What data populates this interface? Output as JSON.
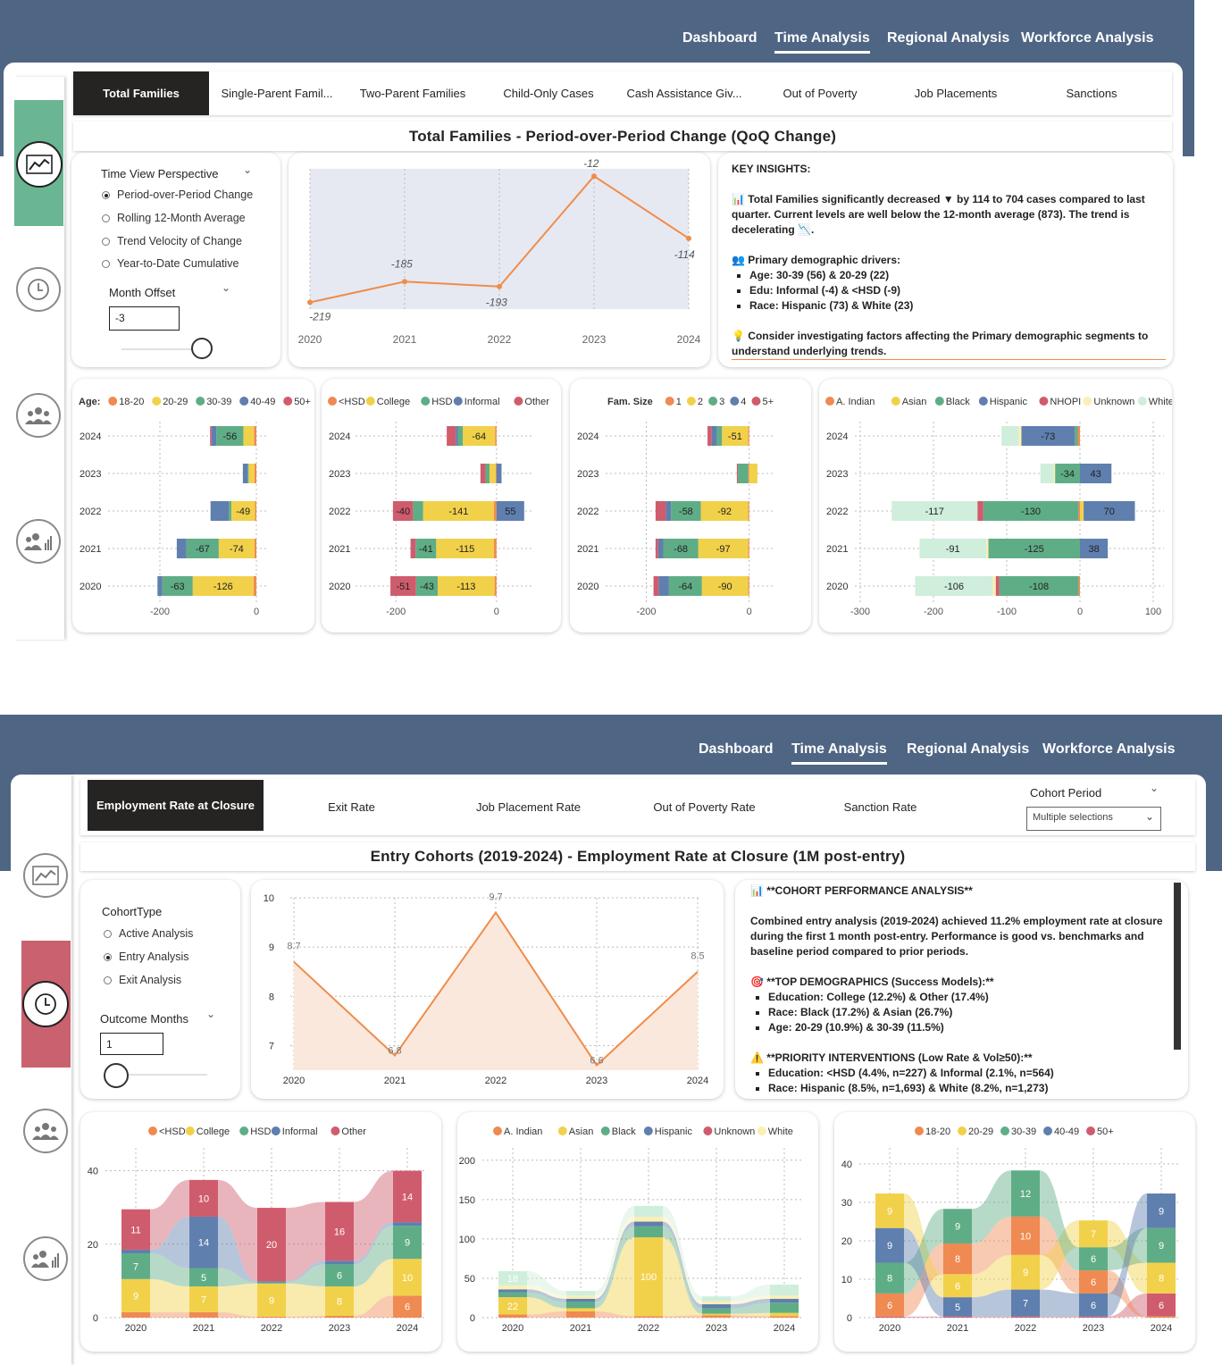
{
  "colors": {
    "nav_band": "#4f6584",
    "accent_orange": "#f08c4b",
    "rail_green": "#6ab592",
    "rail_red": "#c9616f",
    "area_fill_top": "#e6e9f2",
    "area_fill_bottom": "#fbe8dd",
    "tab_active": "#252423"
  },
  "palette": {
    "age": [
      "#ef8a52",
      "#f2d14a",
      "#5fad86",
      "#5f7fae",
      "#cf5c6d"
    ],
    "edu": [
      "#ef8a52",
      "#f2d14a",
      "#5fad86",
      "#5f7fae",
      "#cf5c6d"
    ],
    "race": [
      "#ef8a52",
      "#f2d14a",
      "#5fad86",
      "#5f7fae",
      "#cf5c6d",
      "#fbefb4",
      "#cfeedc"
    ]
  },
  "nav": {
    "items": [
      "Dashboard",
      "Time Analysis",
      "Regional Analysis",
      "Workforce Analysis"
    ],
    "active": "Time Analysis"
  },
  "icons": [
    "trend-line-icon",
    "clock-icon",
    "people-group-icon",
    "people-chart-icon"
  ],
  "panel1": {
    "tabs": [
      "Total Families",
      "Single-Parent Famil...",
      "Two-Parent Families",
      "Child-Only Cases",
      "Cash Assistance Giv...",
      "Out of Poverty",
      "Job Placements",
      "Sanctions"
    ],
    "active_tab": "Total Families",
    "title": "Total Families - Period-over-Period Change (QoQ Change)",
    "perspective": {
      "label": "Time View Perspective",
      "options": [
        "Period-over-Period Change",
        "Rolling 12-Month Average",
        "Trend Velocity of Change",
        "Year-to-Date Cumulative"
      ],
      "selected": 0
    },
    "offset": {
      "label": "Month Offset",
      "value": "-3"
    },
    "insights": {
      "heading": "KEY INSIGHTS:",
      "p1": "📊 Total Families significantly decreased ▼ by 114 to 704 cases compared to last quarter. Current levels are well below the 12-month average (873). The trend is decelerating 📉.",
      "drivers_head": "👥 Primary demographic drivers:",
      "drivers": [
        "Age: 30-39 (56) & 20-29 (22)",
        "Edu: Informal (-4) & <HSD (-9)",
        "Race: Hispanic (73) & White (23)"
      ],
      "tip": "💡 Consider investigating factors affecting the Primary demographic segments to understand underlying trends."
    }
  },
  "chart_data": [
    {
      "id": "qoq-line",
      "type": "area",
      "x": [
        "2020",
        "2021",
        "2022",
        "2023",
        "2024"
      ],
      "values": [
        -219,
        -185,
        -193,
        -12,
        -114
      ],
      "labels": [
        "-219",
        "-185",
        "-193",
        "-12",
        "-114"
      ]
    },
    {
      "id": "age-bars",
      "type": "bar",
      "orientation": "horizontal",
      "stacked": true,
      "legend_title": "Age:",
      "legend": [
        "18-20",
        "20-29",
        "30-39",
        "40-49",
        "50+"
      ],
      "years": [
        "2024",
        "2023",
        "2022",
        "2021",
        "2020"
      ],
      "xticks": [
        "-200",
        "0"
      ],
      "xlim": [
        -200,
        0
      ],
      "series": [
        {
          "name": "18-20",
          "values": [
            -5,
            -4,
            -3,
            -4,
            -6
          ]
        },
        {
          "name": "20-29",
          "values": [
            -22,
            -12,
            -49,
            -74,
            -126
          ]
        },
        {
          "name": "30-39",
          "values": [
            -56,
            -2,
            -5,
            -67,
            -63
          ]
        },
        {
          "name": "40-49",
          "values": [
            -10,
            -10,
            -38,
            -20,
            -10
          ]
        },
        {
          "name": "50+",
          "values": [
            -3,
            0,
            0,
            0,
            0
          ]
        }
      ],
      "labels": {
        "2024": {
          "30-39": "-56"
        },
        "2022": {
          "20-29": "-49"
        },
        "2021": {
          "20-29": "-74",
          "30-39": "-67"
        },
        "2020": {
          "20-29": "-126",
          "30-39": "-63"
        }
      }
    },
    {
      "id": "edu-bars",
      "type": "bar",
      "orientation": "horizontal",
      "stacked": true,
      "legend": [
        "<HSD",
        "College",
        "HSD",
        "Informal",
        "Other"
      ],
      "years": [
        "2024",
        "2023",
        "2022",
        "2021",
        "2020"
      ],
      "xticks": [
        "-200",
        "0"
      ],
      "xlim": [
        -220,
        50
      ],
      "series": [
        {
          "name": "<HSD",
          "values": [
            -3,
            -2,
            -5,
            -5,
            -4
          ]
        },
        {
          "name": "College",
          "values": [
            -64,
            -12,
            -141,
            -115,
            -113
          ]
        },
        {
          "name": "HSD",
          "values": [
            -10,
            -8,
            -20,
            -41,
            -43
          ]
        },
        {
          "name": "Informal",
          "values": [
            -4,
            10,
            55,
            0,
            0
          ]
        },
        {
          "name": "Other",
          "values": [
            -18,
            -10,
            -40,
            -10,
            -51
          ]
        }
      ],
      "labels": {
        "2024": {
          "College": "-64"
        },
        "2022": {
          "Other": "-40",
          "College": "-141",
          "Informal": "55"
        },
        "2021": {
          "HSD": "-41",
          "College": "-115"
        },
        "2020": {
          "Other": "-51",
          "HSD": "-43",
          "College": "-113"
        }
      }
    },
    {
      "id": "famsize-bars",
      "type": "bar",
      "orientation": "horizontal",
      "stacked": true,
      "legend_title": "Fam. Size",
      "legend": [
        "1",
        "2",
        "3",
        "4",
        "5+"
      ],
      "years": [
        "2024",
        "2023",
        "2022",
        "2021",
        "2020"
      ],
      "xticks": [
        "-200",
        "0"
      ],
      "xlim": [
        -220,
        30
      ],
      "series": [
        {
          "name": "1",
          "values": [
            -2,
            -2,
            -2,
            -2,
            -2
          ]
        },
        {
          "name": "2",
          "values": [
            -51,
            16,
            -92,
            -97,
            -90
          ]
        },
        {
          "name": "3",
          "values": [
            -10,
            -20,
            -58,
            -68,
            -64
          ]
        },
        {
          "name": "4",
          "values": [
            -10,
            0,
            -10,
            -10,
            -20
          ]
        },
        {
          "name": "5+",
          "values": [
            -8,
            -2,
            -20,
            -5,
            -10
          ]
        }
      ],
      "labels": {
        "2024": {
          "2": "-51"
        },
        "2022": {
          "3": "-58",
          "2": "-92"
        },
        "2021": {
          "3": "-68",
          "2": "-97"
        },
        "2020": {
          "3": "-64",
          "2": "-90"
        }
      }
    },
    {
      "id": "race-bars",
      "type": "bar",
      "orientation": "horizontal",
      "stacked": true,
      "legend": [
        "A. Indian",
        "Asian",
        "Black",
        "Hispanic",
        "NHOPI",
        "Unknown",
        "White"
      ],
      "years": [
        "2024",
        "2023",
        "2022",
        "2021",
        "2020"
      ],
      "xticks": [
        "-300",
        "-200",
        "-100",
        "0",
        "100"
      ],
      "xlim": [
        -300,
        100
      ],
      "series": [
        {
          "name": "A. Indian",
          "values": [
            -3,
            0,
            -2,
            0,
            -2
          ]
        },
        {
          "name": "Asian",
          "values": [
            0,
            0,
            5,
            0,
            0
          ]
        },
        {
          "name": "Black",
          "values": [
            -4,
            -34,
            -130,
            -125,
            -108
          ]
        },
        {
          "name": "Hispanic",
          "values": [
            -73,
            43,
            70,
            38,
            0
          ]
        },
        {
          "name": "NHOPI",
          "values": [
            0,
            0,
            -8,
            0,
            -5
          ]
        },
        {
          "name": "Unknown",
          "values": [
            -4,
            -2,
            0,
            -3,
            -4
          ]
        },
        {
          "name": "White",
          "values": [
            -23,
            -18,
            -117,
            -91,
            -106
          ]
        }
      ],
      "labels": {
        "2024": {
          "Hispanic": "-73"
        },
        "2023": {
          "Black": "-34",
          "Hispanic": "43"
        },
        "2022": {
          "White": "-117",
          "Black": "-130",
          "Hispanic": "70"
        },
        "2021": {
          "White": "-91",
          "Black": "-125",
          "Hispanic": "38"
        },
        "2020": {
          "White": "-106",
          "Black": "-108"
        }
      }
    },
    {
      "id": "cohort-line",
      "type": "area",
      "x": [
        "2020",
        "2021",
        "2022",
        "2023",
        "2024"
      ],
      "values": [
        8.7,
        6.8,
        9.7,
        6.6,
        8.5
      ],
      "ylim": [
        6.5,
        10
      ],
      "yticks": [
        "10",
        "9",
        "8",
        "7"
      ]
    },
    {
      "id": "edu-ribbon",
      "type": "bar",
      "stacked": true,
      "legend": [
        "<HSD",
        "College",
        "HSD",
        "Informal",
        "Other"
      ],
      "x": [
        "2020",
        "2021",
        "2022",
        "2023",
        "2024"
      ],
      "ylim": [
        0,
        45
      ],
      "yticks": [
        "40",
        "20",
        "0"
      ],
      "series": [
        {
          "name": "<HSD",
          "values": [
            1.5,
            1.5,
            0.3,
            0.5,
            6
          ]
        },
        {
          "name": "College",
          "values": [
            9,
            7,
            9,
            8,
            10
          ]
        },
        {
          "name": "HSD",
          "values": [
            7,
            5,
            0.3,
            6,
            9
          ]
        },
        {
          "name": "Informal",
          "values": [
            1,
            14,
            0.3,
            1,
            1
          ]
        },
        {
          "name": "Other",
          "values": [
            11,
            10,
            20,
            16,
            14
          ]
        }
      ],
      "labels": {
        "<HSD": [
          "",
          "",
          "",
          "",
          "6"
        ],
        "College": [
          "9",
          "7",
          "9",
          "8",
          "10"
        ],
        "HSD": [
          "7",
          "5",
          "",
          "6",
          "9"
        ],
        "Informal": [
          "",
          "14",
          "",
          "",
          ""
        ],
        "Other": [
          "11",
          "10",
          "20",
          "16",
          "14"
        ]
      }
    },
    {
      "id": "race-ribbon",
      "type": "bar",
      "stacked": true,
      "legend": [
        "A. Indian",
        "Asian",
        "Black",
        "Hispanic",
        "Unknown",
        "White"
      ],
      "x": [
        "2020",
        "2021",
        "2022",
        "2023",
        "2024"
      ],
      "ylim": [
        0,
        210
      ],
      "yticks": [
        "200",
        "150",
        "100",
        "50",
        "0"
      ],
      "series": [
        {
          "name": "A. Indian",
          "values": [
            4,
            8,
            2,
            3,
            2
          ]
        },
        {
          "name": "Asian",
          "values": [
            22,
            4,
            100,
            2,
            4
          ]
        },
        {
          "name": "Black",
          "values": [
            6,
            8,
            14,
            7,
            13
          ]
        },
        {
          "name": "Hispanic",
          "values": [
            4,
            4,
            6,
            5,
            5
          ]
        },
        {
          "name": "Unknown",
          "values": [
            5,
            4,
            6,
            4,
            4
          ]
        },
        {
          "name": "White",
          "values": [
            18,
            6,
            14,
            6,
            14
          ]
        }
      ],
      "labels": {
        "Asian": [
          "22",
          "",
          "100",
          "",
          ""
        ],
        "White": [
          "18",
          "",
          "",
          "",
          ""
        ]
      }
    },
    {
      "id": "age-ribbon",
      "type": "bar",
      "stacked": true,
      "legend": [
        "18-20",
        "20-29",
        "30-39",
        "40-49",
        "50+"
      ],
      "x": [
        "2020",
        "2021",
        "2022",
        "2023",
        "2024"
      ],
      "ylim": [
        0,
        43
      ],
      "yticks": [
        "40",
        "30",
        "20",
        "10",
        "0"
      ],
      "series": [
        {
          "name": "50+",
          "values": [
            0.3,
            0.3,
            0.3,
            0.3,
            6
          ]
        },
        {
          "name": "18-20",
          "values": [
            6,
            8,
            10,
            6,
            0.3
          ]
        },
        {
          "name": "20-29",
          "values": [
            9,
            6,
            9,
            7,
            8
          ]
        },
        {
          "name": "30-39",
          "values": [
            8,
            9,
            12,
            6,
            9
          ]
        },
        {
          "name": "40-49",
          "values": [
            9,
            5,
            7,
            6,
            9
          ]
        }
      ],
      "order_per_year": [
        [
          "18-20",
          "30-39",
          "40-49",
          "20-29"
        ],
        [
          "40-49",
          "20-29",
          "18-20",
          "30-39"
        ],
        [
          "40-49",
          "20-29",
          "18-20",
          "30-39"
        ],
        [
          "40-49",
          "18-20",
          "30-39",
          "20-29"
        ],
        [
          "50+",
          "20-29",
          "30-39",
          "40-49"
        ]
      ],
      "labels": {
        "50+": [
          "",
          "",
          "",
          "",
          "6"
        ],
        "18-20": [
          "6",
          "8",
          "10",
          "6",
          ""
        ],
        "20-29": [
          "9",
          "6",
          "9",
          "7",
          "8"
        ],
        "30-39": [
          "8",
          "9",
          "12",
          "6",
          "9"
        ],
        "40-49": [
          "9",
          "5",
          "7",
          "6",
          "9"
        ]
      }
    }
  ],
  "panel2": {
    "tabs": [
      "Employment Rate at Closure",
      "Exit Rate",
      "Job Placement Rate",
      "Out of Poverty Rate",
      "Sanction Rate"
    ],
    "active_tab": "Employment Rate at Closure",
    "cohort_period": {
      "label": "Cohort Period",
      "value": "Multiple selections"
    },
    "title": "Entry Cohorts (2019-2024) - Employment Rate at Closure (1M post-entry)",
    "cohort_type": {
      "label": "CohortType",
      "options": [
        "Active Analysis",
        "Entry Analysis",
        "Exit Analysis"
      ],
      "selected": 1
    },
    "outcome": {
      "label": "Outcome Months",
      "value": "1"
    },
    "analysis": {
      "heading": "📊 **COHORT PERFORMANCE ANALYSIS**",
      "p1": "Combined entry analysis (2019-2024) achieved 11.2% employment rate at closure during the first 1 month post-entry. Performance is good vs. benchmarks and baseline period compared to prior periods.",
      "top_head": "🎯 **TOP DEMOGRAPHICS (Success Models):**",
      "top": [
        "Education: College (12.2%) & Other (17.4%)",
        "Race: Black (17.2%) & Asian (26.7%)",
        "Age: 20-29 (10.9%) & 30-39 (11.5%)"
      ],
      "pri_head": "⚠️ **PRIORITY INTERVENTIONS (Low Rate & Vol≥50):**",
      "pri": [
        "Education: <HSD (4.4%, n=227) & Informal (2.1%, n=564)",
        "Race: Hispanic (8.5%, n=1,693) & White (8.2%, n=1,273)"
      ]
    }
  }
}
